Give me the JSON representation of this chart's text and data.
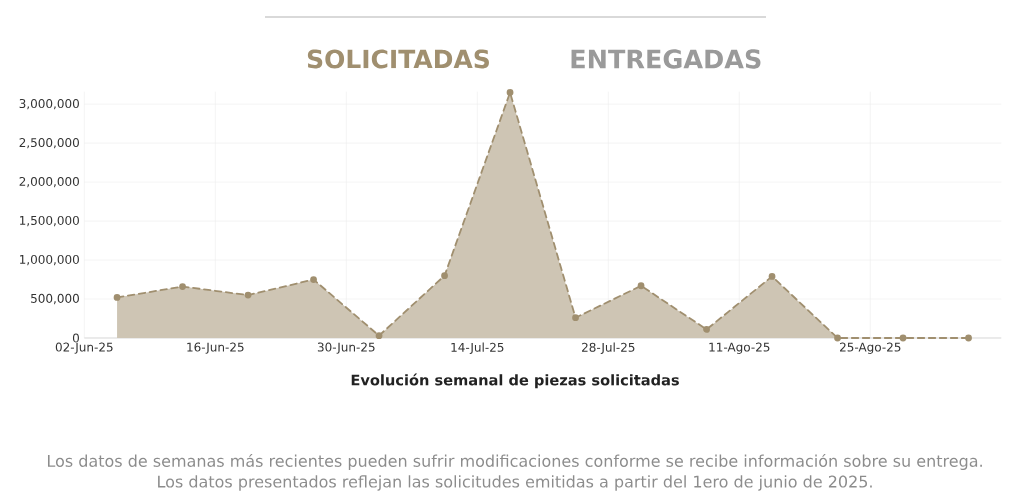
{
  "chart_data": {
    "type": "area",
    "title": "Evolución semanal de piezas solicitadas",
    "annotations": [
      "SOLICITADAS",
      "ENTREGADAS",
      "Los datos de semanas más recientes pueden sufrir modificaciones conforme se recibe información sobre su entrega.",
      "Los datos presentados reflejan las solicitudes emitidas a partir del 1ero de junio de 2025."
    ],
    "x": [
      "2025-06-05T12:00",
      "2025-06-12T12:00",
      "2025-06-19T12:00",
      "2025-06-26T12:00",
      "2025-07-03T12:00",
      "2025-07-10T12:00",
      "2025-07-17T12:00",
      "2025-07-24T12:00",
      "2025-07-31T12:00",
      "2025-08-07T12:00",
      "2025-08-14T12:00",
      "2025-08-21T12:00",
      "2025-08-28T12:00",
      "2025-09-04T12:00"
    ],
    "series": [
      {
        "color": "#a08f6f",
        "values": [
          520000,
          660000,
          550000,
          750000,
          30000,
          800000,
          3150000,
          260000,
          670000,
          110000,
          790000,
          0,
          0,
          0
        ]
      }
    ],
    "xlim": [
      "2025-06-02",
      "2025-09-08"
    ],
    "xticks": [
      {
        "value": "2025-06-02",
        "label": "02-Jun-25"
      },
      {
        "value": "2025-06-16",
        "label": "16-Jun-25"
      },
      {
        "value": "2025-06-30",
        "label": "30-Jun-25"
      },
      {
        "value": "2025-07-14",
        "label": "14-Jul-25"
      },
      {
        "value": "2025-07-28",
        "label": "28-Jul-25"
      },
      {
        "value": "2025-08-11",
        "label": "11-Ago-25"
      },
      {
        "value": "2025-08-25",
        "label": "25-Ago-25"
      }
    ],
    "ylim": [
      0,
      3160000
    ],
    "yticks": [
      0,
      {
        "value": 500000,
        "label": "500,000"
      },
      {
        "value": 1000000,
        "label": "1,000,000"
      },
      {
        "value": 1500000,
        "label": "1,500,000"
      },
      {
        "value": 2000000,
        "label": "2,000,000"
      },
      {
        "value": 2500000,
        "label": "2,500,000"
      },
      {
        "value": 3000000,
        "label": "3,000,000"
      }
    ],
    "grid": true,
    "marker": "circle",
    "line_style": "dashed"
  }
}
